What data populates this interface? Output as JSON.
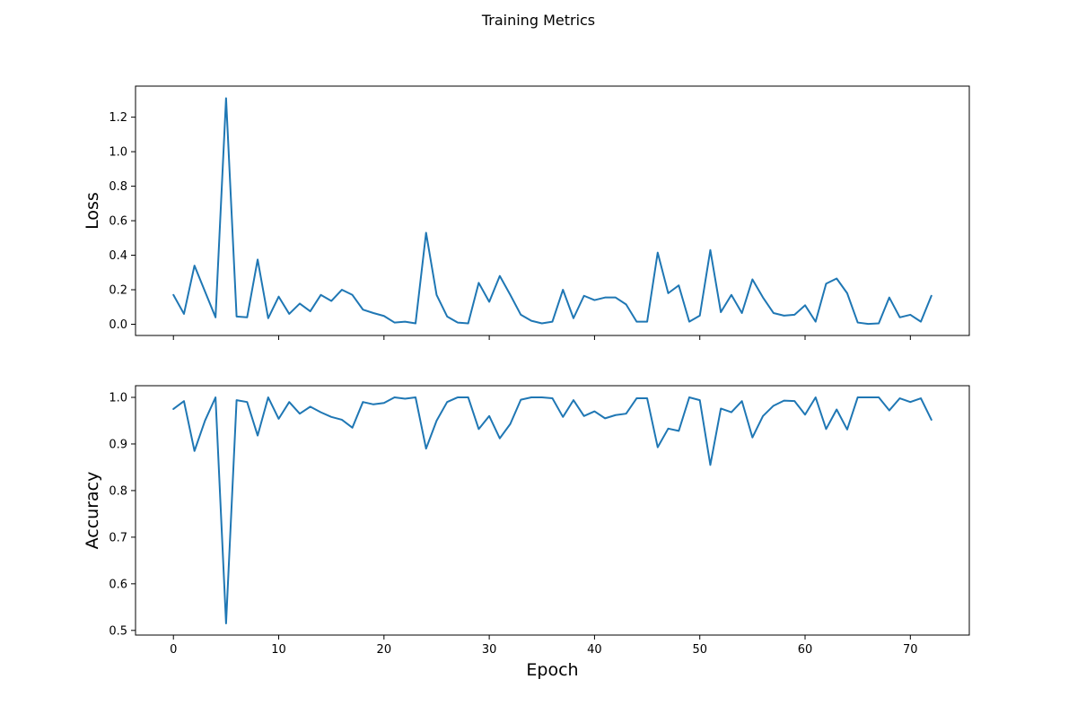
{
  "figure": {
    "title": "Training Metrics"
  },
  "colors": {
    "series": "#1f77b4",
    "axes": "#000000",
    "background": "#ffffff"
  },
  "chart_data": [
    {
      "type": "line",
      "panel": "top",
      "title": "",
      "xlabel": "",
      "ylabel": "Loss",
      "xlim": [
        -3.6,
        75.6
      ],
      "ylim": [
        -0.065,
        1.38
      ],
      "x_ticks": [
        0,
        10,
        20,
        30,
        40,
        50,
        60,
        70
      ],
      "x_tick_labels_shown": false,
      "y_ticks": [
        0.0,
        0.2,
        0.4,
        0.6,
        0.8,
        1.0,
        1.2
      ],
      "y_tick_labels": [
        "0.0",
        "0.2",
        "0.4",
        "0.6",
        "0.8",
        "1.0",
        "1.2"
      ],
      "grid": false,
      "series": [
        {
          "name": "",
          "x": [
            0,
            1,
            2,
            3,
            4,
            5,
            6,
            7,
            8,
            9,
            10,
            11,
            12,
            13,
            14,
            15,
            16,
            17,
            18,
            19,
            20,
            21,
            22,
            23,
            24,
            25,
            26,
            27,
            28,
            29,
            30,
            31,
            32,
            33,
            34,
            35,
            36,
            37,
            38,
            39,
            40,
            41,
            42,
            43,
            44,
            45,
            46,
            47,
            48,
            49,
            50,
            51,
            52,
            53,
            54,
            55,
            56,
            57,
            58,
            59,
            60,
            61,
            62,
            63,
            64,
            65,
            66,
            67,
            68,
            69,
            70,
            71,
            72
          ],
          "values": [
            0.17,
            0.06,
            0.34,
            0.19,
            0.04,
            1.31,
            0.045,
            0.04,
            0.375,
            0.035,
            0.16,
            0.06,
            0.12,
            0.075,
            0.17,
            0.135,
            0.2,
            0.17,
            0.085,
            0.065,
            0.048,
            0.01,
            0.015,
            0.005,
            0.53,
            0.17,
            0.045,
            0.01,
            0.005,
            0.24,
            0.13,
            0.28,
            0.17,
            0.055,
            0.02,
            0.005,
            0.015,
            0.2,
            0.035,
            0.165,
            0.14,
            0.155,
            0.155,
            0.115,
            0.015,
            0.015,
            0.415,
            0.18,
            0.225,
            0.015,
            0.05,
            0.43,
            0.07,
            0.17,
            0.065,
            0.26,
            0.155,
            0.065,
            0.05,
            0.055,
            0.11,
            0.015,
            0.235,
            0.265,
            0.18,
            0.01,
            0.002,
            0.005,
            0.155,
            0.04,
            0.055,
            0.015,
            0.165
          ]
        }
      ]
    },
    {
      "type": "line",
      "panel": "bottom",
      "title": "",
      "xlabel": "Epoch",
      "ylabel": "Accuracy",
      "xlim": [
        -3.6,
        75.6
      ],
      "ylim": [
        0.49,
        1.025
      ],
      "x_ticks": [
        0,
        10,
        20,
        30,
        40,
        50,
        60,
        70
      ],
      "x_tick_labels": [
        "0",
        "10",
        "20",
        "30",
        "40",
        "50",
        "60",
        "70"
      ],
      "y_ticks": [
        0.5,
        0.6,
        0.7,
        0.8,
        0.9,
        1.0
      ],
      "y_tick_labels": [
        "0.5",
        "0.6",
        "0.7",
        "0.8",
        "0.9",
        "1.0"
      ],
      "grid": false,
      "series": [
        {
          "name": "",
          "x": [
            0,
            1,
            2,
            3,
            4,
            5,
            6,
            7,
            8,
            9,
            10,
            11,
            12,
            13,
            14,
            15,
            16,
            17,
            18,
            19,
            20,
            21,
            22,
            23,
            24,
            25,
            26,
            27,
            28,
            29,
            30,
            31,
            32,
            33,
            34,
            35,
            36,
            37,
            38,
            39,
            40,
            41,
            42,
            43,
            44,
            45,
            46,
            47,
            48,
            49,
            50,
            51,
            52,
            53,
            54,
            55,
            56,
            57,
            58,
            59,
            60,
            61,
            62,
            63,
            64,
            65,
            66,
            67,
            68,
            69,
            70,
            71,
            72
          ],
          "values": [
            0.975,
            0.992,
            0.885,
            0.95,
            1.0,
            0.515,
            0.994,
            0.99,
            0.918,
            1.0,
            0.954,
            0.99,
            0.965,
            0.98,
            0.968,
            0.958,
            0.952,
            0.935,
            0.99,
            0.985,
            0.988,
            1.0,
            0.997,
            1.0,
            0.89,
            0.95,
            0.99,
            1.0,
            1.0,
            0.932,
            0.96,
            0.912,
            0.943,
            0.995,
            1.0,
            1.0,
            0.998,
            0.958,
            0.994,
            0.96,
            0.97,
            0.955,
            0.962,
            0.965,
            0.998,
            0.998,
            0.893,
            0.933,
            0.928,
            1.0,
            0.994,
            0.855,
            0.976,
            0.968,
            0.992,
            0.914,
            0.96,
            0.982,
            0.993,
            0.992,
            0.963,
            1.0,
            0.932,
            0.974,
            0.931,
            1.0,
            1.0,
            1.0,
            0.972,
            0.998,
            0.99,
            0.998,
            0.952
          ]
        }
      ]
    }
  ]
}
